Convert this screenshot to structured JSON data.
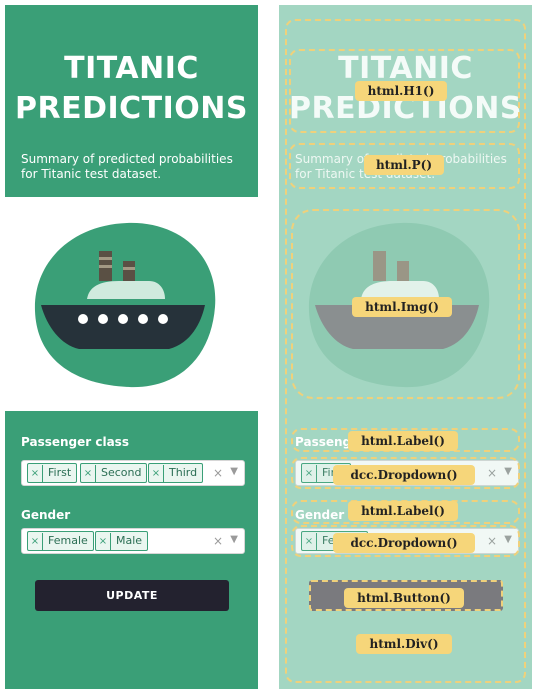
{
  "app": {
    "title_line1": "TITANIC",
    "title_line2": "PREDICTIONS",
    "subtitle": "Summary of predicted probabilities for Titanic test dataset."
  },
  "form": {
    "passenger_class_label": "Passenger class",
    "passenger_class_options": [
      "First",
      "Second",
      "Third"
    ],
    "gender_label": "Gender",
    "gender_options": [
      "Female",
      "Male"
    ],
    "update_button": "UPDATE"
  },
  "annotations": {
    "h1": "html.H1()",
    "p": "html.P()",
    "img": "html.Img()",
    "label1": "html.Label()",
    "dropdown1": "dcc.Dropdown()",
    "label2": "html.Label()",
    "dropdown2": "dcc.Dropdown()",
    "button": "html.Button()",
    "div": "html.Div()"
  },
  "colors": {
    "primary": "#3a9f77",
    "overlay": "#a3d6c2",
    "button": "#23222f",
    "annotation": "#f6d67a"
  }
}
